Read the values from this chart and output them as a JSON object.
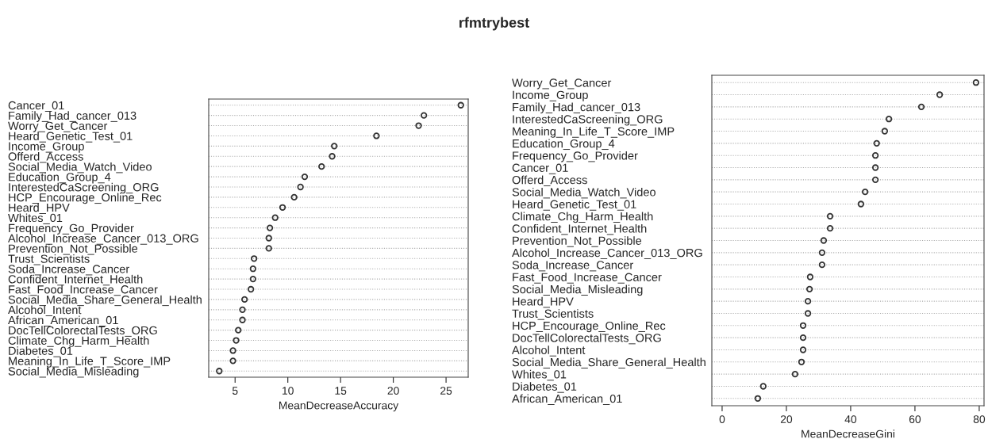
{
  "chart_data": [
    {
      "type": "scatter",
      "title": "rfmtrybest",
      "orientation": "horizontal",
      "xlabel": "MeanDecreaseAccuracy",
      "categories": [
        "Cancer_01",
        "Family_Had_cancer_013",
        "Worry_Get_Cancer",
        "Heard_Genetic_Test_01",
        "Income_Group",
        "Offerd_Access",
        "Social_Media_Watch_Video",
        "Education_Group_4",
        "InterestedCaScreening_ORG",
        "HCP_Encourage_Online_Rec",
        "Heard_HPV",
        "Whites_01",
        "Frequency_Go_Provider",
        "Alcohol_Increase_Cancer_013_ORG",
        "Prevention_Not_Possible",
        "Trust_Scientists",
        "Soda_Increase_Cancer",
        "Confident_Internet_Health",
        "Fast_Food_Increase_Cancer",
        "Social_Media_Share_General_Health",
        "Alcohol_Intent",
        "African_American_01",
        "DocTellColorectalTests_ORG",
        "Climate_Chg_Harm_Health",
        "Diabetes_01",
        "Meaning_In_Life_T_Score_IMP",
        "Social_Media_Misleading"
      ],
      "series": [
        {
          "color": "#333333",
          "values": [
            26.4,
            22.9,
            22.4,
            18.4,
            14.4,
            14.2,
            13.2,
            11.6,
            11.2,
            10.6,
            9.5,
            8.8,
            8.3,
            8.2,
            8.2,
            6.8,
            6.7,
            6.7,
            6.5,
            5.9,
            5.7,
            5.7,
            5.3,
            5.1,
            4.8,
            4.8,
            3.5
          ]
        }
      ],
      "xlim": [
        2.5,
        27.1
      ],
      "xticks": [
        5,
        10,
        15,
        20,
        25
      ],
      "grid": "y",
      "line_style": "dotted",
      "marker": "circle"
    },
    {
      "type": "scatter",
      "orientation": "horizontal",
      "xlabel": "MeanDecreaseGini",
      "categories": [
        "Worry_Get_Cancer",
        "Income_Group",
        "Family_Had_cancer_013",
        "InterestedCaScreening_ORG",
        "Meaning_In_Life_T_Score_IMP",
        "Education_Group_4",
        "Frequency_Go_Provider",
        "Cancer_01",
        "Offerd_Access",
        "Social_Media_Watch_Video",
        "Heard_Genetic_Test_01",
        "Climate_Chg_Harm_Health",
        "Confident_Internet_Health",
        "Prevention_Not_Possible",
        "Alcohol_Increase_Cancer_013_ORG",
        "Soda_Increase_Cancer",
        "Fast_Food_Increase_Cancer",
        "Social_Media_Misleading",
        "Heard_HPV",
        "Trust_Scientists",
        "HCP_Encourage_Online_Rec",
        "DocTellColorectalTests_ORG",
        "Alcohol_Intent",
        "Social_Media_Share_General_Health",
        "Whites_01",
        "Diabetes_01",
        "African_American_01"
      ],
      "series": [
        {
          "color": "#333333",
          "values": [
            79.0,
            67.7,
            62.0,
            51.9,
            50.6,
            48.1,
            47.7,
            47.7,
            47.7,
            44.5,
            43.2,
            33.6,
            33.6,
            31.6,
            31.1,
            31.1,
            27.4,
            27.2,
            26.7,
            26.7,
            25.2,
            25.2,
            25.2,
            24.7,
            22.7,
            12.8,
            11.1
          ]
        }
      ],
      "xlim": [
        -3.2,
        81.5
      ],
      "xticks": [
        0,
        20,
        40,
        60,
        80
      ],
      "grid": "y",
      "line_style": "dotted",
      "marker": "circle"
    }
  ]
}
